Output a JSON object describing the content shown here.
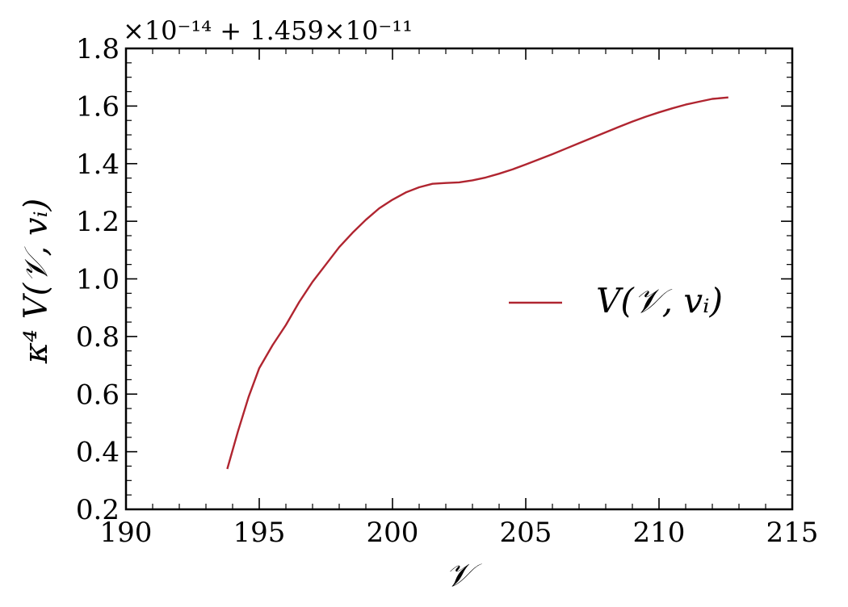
{
  "chart_data": {
    "type": "line",
    "xlabel": "𝒱",
    "ylabel": "κ⁴ V(𝒱, vᵢ)",
    "offset_text": "×10⁻¹⁴ + 1.459×10⁻¹¹",
    "xlim": [
      190,
      215
    ],
    "ylim": [
      0.2,
      1.8
    ],
    "xticks": [
      190,
      195,
      200,
      205,
      210,
      215
    ],
    "xtick_labels": [
      "190",
      "195",
      "200",
      "205",
      "210",
      "215"
    ],
    "yticks": [
      0.2,
      0.4,
      0.6,
      0.8,
      1.0,
      1.2,
      1.4,
      1.6,
      1.8
    ],
    "ytick_labels": [
      "0.2",
      "0.4",
      "0.6",
      "0.8",
      "1.0",
      "1.2",
      "1.4",
      "1.6",
      "1.8"
    ],
    "grid": false,
    "legend_position": "center-right",
    "series": [
      {
        "name": "V(𝒱, vᵢ)",
        "color": "#b02530",
        "x": [
          193.8,
          194.2,
          194.6,
          195.0,
          195.5,
          196.0,
          196.5,
          197.0,
          197.5,
          198.0,
          198.5,
          199.0,
          199.5,
          200.0,
          200.5,
          201.0,
          201.5,
          202.0,
          202.5,
          203.0,
          203.5,
          204.0,
          204.5,
          205.0,
          205.5,
          206.0,
          206.5,
          207.0,
          207.5,
          208.0,
          208.5,
          209.0,
          209.5,
          210.0,
          210.5,
          211.0,
          211.5,
          212.0,
          212.6
        ],
        "y": [
          0.34,
          0.47,
          0.59,
          0.69,
          0.77,
          0.84,
          0.92,
          0.99,
          1.05,
          1.11,
          1.16,
          1.205,
          1.245,
          1.275,
          1.3,
          1.318,
          1.33,
          1.333,
          1.335,
          1.342,
          1.352,
          1.365,
          1.38,
          1.397,
          1.415,
          1.433,
          1.452,
          1.471,
          1.49,
          1.509,
          1.528,
          1.546,
          1.563,
          1.578,
          1.592,
          1.605,
          1.615,
          1.625,
          1.63
        ]
      }
    ]
  }
}
